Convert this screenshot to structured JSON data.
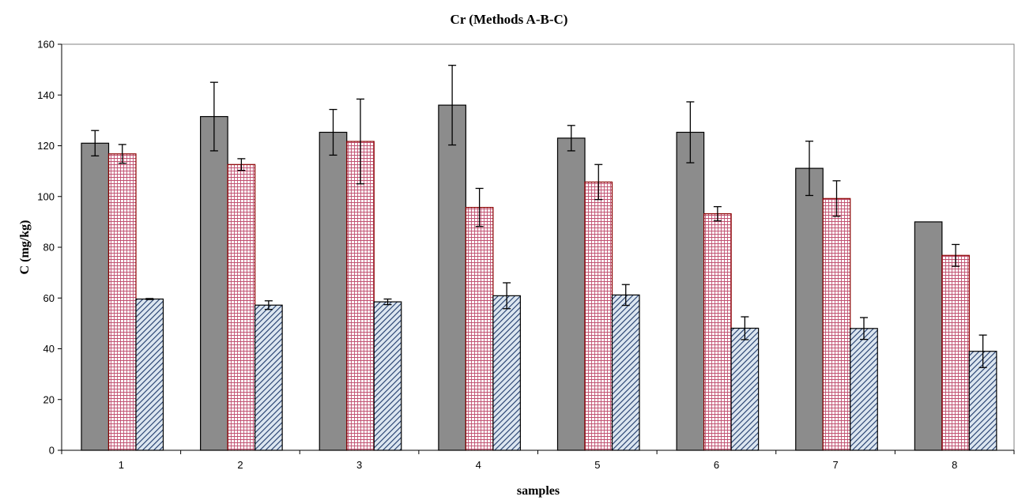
{
  "chart_data": {
    "type": "bar",
    "title": "Cr (Methods A-B-C)",
    "xlabel": "samples",
    "ylabel": "C (mg/kg)",
    "ylim": [
      0,
      160
    ],
    "yticks": [
      0,
      20,
      40,
      60,
      80,
      100,
      120,
      140,
      160
    ],
    "categories": [
      "1",
      "2",
      "3",
      "4",
      "5",
      "6",
      "7",
      "8"
    ],
    "grid": false,
    "legend": "none",
    "series": [
      {
        "values": [
          121,
          131.5,
          125.3,
          136,
          123,
          125.3,
          111.1,
          90
        ],
        "error": [
          5,
          13.5,
          9,
          15.7,
          5,
          12,
          10.7,
          0
        ],
        "fill": "#8c8c8c",
        "pattern": "solid"
      },
      {
        "values": [
          116.8,
          112.6,
          121.7,
          95.7,
          105.7,
          93.2,
          99.2,
          76.8
        ],
        "error": [
          3.7,
          2.3,
          16.7,
          7.5,
          6.9,
          2.8,
          7,
          4.3
        ],
        "fill": "#ffffff",
        "pattern": "grid",
        "pattern_color": "#b04060",
        "stroke": "#8b0000"
      },
      {
        "values": [
          59.6,
          57.2,
          58.5,
          60.9,
          61.2,
          48.1,
          48,
          39
        ],
        "error": [
          0.2,
          1.7,
          1.1,
          5.1,
          4.1,
          4.5,
          4.3,
          6.4
        ],
        "fill": "#dce6f0",
        "pattern": "diagonal",
        "pattern_color": "#1f3a6b"
      }
    ]
  }
}
